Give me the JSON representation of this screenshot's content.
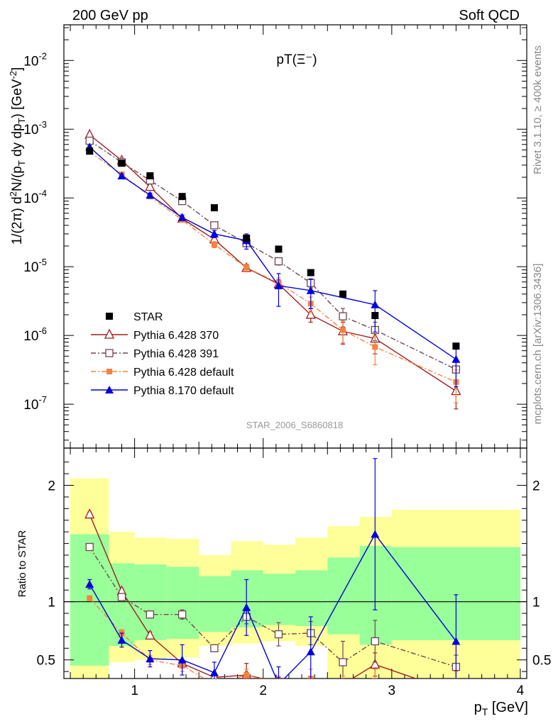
{
  "header": {
    "left": "200 GeV pp",
    "right": "Soft QCD"
  },
  "side_labels": {
    "rivet": "Rivet 3.1.10, ≥ 400k events",
    "mcplots": "mcplots.cern.ch [arXiv:1306.3436]"
  },
  "colors": {
    "STAR": "#000000",
    "Pythia 6.428 370": "#a01e23",
    "Pythia 6.428 391": "#6e4650",
    "Pythia 6.428 default": "#f5823c",
    "Pythia 8.170 default": "#0000dc",
    "band_inner": "#99ff99",
    "band_outer": "#ffff99"
  },
  "chart_data": [
    {
      "type": "line",
      "panel": "main",
      "title": "pT(Ξ⁻)",
      "ylabel": "1/(2π) d²N/(p_T dy dp_T) [GeV⁻²]",
      "xlabel": "",
      "analysis_label": "STAR_2006_S6860818",
      "xlim": [
        0.45,
        4.05
      ],
      "ylim": [
        2.3e-08,
        0.033
      ],
      "yscale": "log",
      "yticks": [
        {
          "value": 1e-07,
          "base": "10",
          "exp": "-7"
        },
        {
          "value": 1e-06,
          "base": "10",
          "exp": "-6"
        },
        {
          "value": 1e-05,
          "base": "10",
          "exp": "-5"
        },
        {
          "value": 0.0001,
          "base": "10",
          "exp": "-4"
        },
        {
          "value": 0.001,
          "base": "10",
          "exp": "-3"
        },
        {
          "value": 0.01,
          "base": "10",
          "exp": "-2"
        }
      ],
      "legend_position": "bottom-left",
      "x": [
        0.65,
        0.9,
        1.12,
        1.37,
        1.62,
        1.87,
        2.12,
        2.37,
        2.62,
        2.87,
        3.5
      ],
      "series": [
        {
          "name": "STAR",
          "marker": "filled-square",
          "line": "none",
          "values": [
            0.00048,
            0.00032,
            0.00021,
            0.000105,
            7.2e-05,
            2.6e-05,
            1.8e-05,
            8.2e-06,
            4e-06,
            1.95e-06,
            7e-07
          ],
          "err_rel": [
            0.02,
            0.02,
            0.02,
            0.03,
            0.03,
            0.04,
            0.04,
            0.05,
            0.05,
            0.06,
            0.08
          ]
        },
        {
          "name": "Pythia 6.428 370",
          "marker": "open-triangle",
          "line": "solid",
          "values": [
            0.00083,
            0.00035,
            0.000145,
            5e-05,
            2.5e-05,
            9.6e-06,
            5.6e-06,
            2e-06,
            1.15e-06,
            9e-07,
            1.55e-07
          ],
          "err_rel": [
            0.04,
            0.05,
            0.06,
            0.08,
            0.1,
            0.12,
            0.15,
            0.22,
            0.35,
            0.4,
            0.45
          ]
        },
        {
          "name": "Pythia 6.428 391",
          "marker": "open-square",
          "line": "dashdot",
          "values": [
            0.00068,
            0.00033,
            0.00018,
            9e-05,
            4e-05,
            2.2e-05,
            1.2e-05,
            5.8e-06,
            1.9e-06,
            1.2e-06,
            3.2e-07
          ],
          "err_rel": [
            0.03,
            0.03,
            0.04,
            0.05,
            0.06,
            0.1,
            0.12,
            0.15,
            0.3,
            0.3,
            0.3
          ]
        },
        {
          "name": "Pythia 6.428 default",
          "marker": "filled-square-small",
          "line": "dashdot",
          "values": [
            0.00047,
            0.00022,
            0.000105,
            4.8e-05,
            2.1e-05,
            9.7e-06,
            5.8e-06,
            2.9e-06,
            1.2e-06,
            6.8e-07,
            2.1e-07
          ],
          "err_rel": [
            0.03,
            0.04,
            0.05,
            0.07,
            0.1,
            0.12,
            0.18,
            0.25,
            0.35,
            0.45,
            0.5
          ]
        },
        {
          "name": "Pythia 8.170 default",
          "marker": "filled-triangle",
          "line": "solid",
          "values": [
            0.00055,
            0.00021,
            0.00011,
            5.2e-05,
            3e-05,
            2.4e-05,
            5.3e-06,
            4.5e-06,
            null,
            2.8e-06,
            4.5e-07
          ],
          "err_rel": [
            0.05,
            0.06,
            0.07,
            0.09,
            0.12,
            0.25,
            0.5,
            0.45,
            null,
            0.6,
            0.6
          ]
        }
      ]
    },
    {
      "type": "line",
      "panel": "ratio",
      "ylabel": "Ratio to STAR",
      "xlabel": "p_T [GeV]",
      "xlim": [
        0.45,
        4.05
      ],
      "ylim": [
        0.34,
        2.32
      ],
      "xticks": [
        {
          "value": 1,
          "label": "1"
        },
        {
          "value": 2,
          "label": "2"
        },
        {
          "value": 3,
          "label": "3"
        },
        {
          "value": 4,
          "label": "4"
        }
      ],
      "yticks": [
        {
          "value": 0.5,
          "label": "0.5"
        },
        {
          "value": 1,
          "label": "1"
        },
        {
          "value": 2,
          "label": "2"
        }
      ],
      "bands": [
        {
          "x0": 0.5,
          "x1": 0.8,
          "inner": [
            0.45,
            1.58
          ],
          "outer": [
            0.33,
            2.06
          ]
        },
        {
          "x0": 0.8,
          "x1": 1.0,
          "inner": [
            0.62,
            1.33
          ],
          "outer": [
            0.48,
            1.6
          ]
        },
        {
          "x0": 1.0,
          "x1": 1.25,
          "inner": [
            0.67,
            1.32
          ],
          "outer": [
            0.5,
            1.55
          ]
        },
        {
          "x0": 1.25,
          "x1": 1.5,
          "inner": [
            0.68,
            1.3
          ],
          "outer": [
            0.52,
            1.54
          ]
        },
        {
          "x0": 1.5,
          "x1": 1.75,
          "inner": [
            0.74,
            1.22
          ],
          "outer": [
            0.62,
            1.4
          ]
        },
        {
          "x0": 1.75,
          "x1": 2.0,
          "inner": [
            0.78,
            1.27
          ],
          "outer": [
            0.64,
            1.52
          ]
        },
        {
          "x0": 2.0,
          "x1": 2.25,
          "inner": [
            0.8,
            1.24
          ],
          "outer": [
            0.66,
            1.49
          ]
        },
        {
          "x0": 2.25,
          "x1": 2.5,
          "inner": [
            0.79,
            1.27
          ],
          "outer": [
            0.62,
            1.55
          ]
        },
        {
          "x0": 2.5,
          "x1": 2.75,
          "inner": [
            0.72,
            1.38
          ],
          "outer": [
            0.34,
            1.65
          ]
        },
        {
          "x0": 2.75,
          "x1": 3.0,
          "inner": [
            0.63,
            1.48
          ],
          "outer": [
            0.34,
            1.73
          ]
        },
        {
          "x0": 3.0,
          "x1": 4.0,
          "inner": [
            0.67,
            1.47
          ],
          "outer": [
            0.34,
            1.79
          ]
        }
      ],
      "x": [
        0.65,
        0.9,
        1.12,
        1.37,
        1.62,
        1.87,
        2.12,
        2.37,
        2.62,
        2.87,
        3.5
      ],
      "series": [
        {
          "name": "Pythia 6.428 370",
          "values": [
            1.75,
            1.09,
            0.71,
            0.47,
            0.35,
            0.37,
            0.31,
            0.24,
            0.29,
            0.46,
            0.22
          ],
          "err": [
            0.02,
            0.02,
            0.03,
            0.03,
            0.03,
            0.1,
            0.04,
            0.04,
            0.05,
            0.1,
            0.05
          ]
        },
        {
          "name": "Pythia 6.428 391",
          "values": [
            1.47,
            1.04,
            0.89,
            0.89,
            0.6,
            0.87,
            0.72,
            0.73,
            0.48,
            0.66,
            0.44
          ],
          "err": [
            0.02,
            0.02,
            0.03,
            0.04,
            0.03,
            0.06,
            0.1,
            0.1,
            0.18,
            0.18,
            0.1
          ]
        },
        {
          "name": "Pythia 6.428 default",
          "values": [
            1.03,
            0.73,
            0.5,
            0.45,
            0.29,
            0.37,
            0.3,
            0.34,
            0.28,
            0.32,
            0.3
          ],
          "err": [
            0.02,
            0.03,
            0.04,
            0.05,
            0.04,
            0.05,
            0.06,
            0.08,
            0.08,
            0.1,
            0.1
          ]
        },
        {
          "name": "Pythia 8.170 default",
          "values": [
            1.15,
            0.67,
            0.51,
            0.5,
            0.39,
            0.95,
            0.29,
            0.57,
            null,
            1.58,
            0.66
          ],
          "err": [
            0.04,
            0.06,
            0.07,
            0.13,
            0.09,
            0.24,
            0.15,
            0.3,
            null,
            0.65,
            0.4
          ]
        }
      ]
    }
  ]
}
